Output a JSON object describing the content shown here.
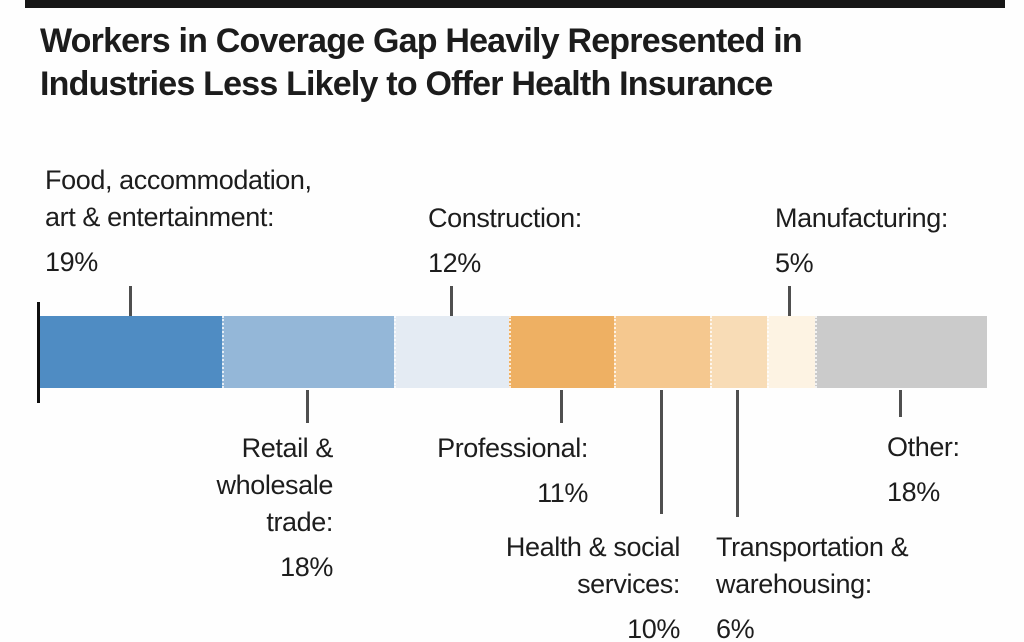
{
  "header": {
    "title_line1": "Workers in Coverage Gap Heavily Represented in",
    "title_line2": "Industries Less Likely to Offer Health Insurance"
  },
  "chart_data": {
    "type": "bar",
    "subtype": "horizontal-stacked-single-bar",
    "title": "Workers in Coverage Gap Heavily Represented in Industries Less Likely to Offer Health Insurance",
    "unit": "%",
    "xlim": [
      0,
      99
    ],
    "grid": false,
    "legend_position": "callouts-above-and-below-bar",
    "categories": [
      "Food, accommodation, art & entertainment",
      "Retail & wholesale trade",
      "Construction",
      "Professional",
      "Health & social services",
      "Transportation & warehousing",
      "Manufacturing",
      "Other"
    ],
    "values": [
      19,
      18,
      12,
      11,
      10,
      6,
      5,
      18
    ],
    "segments": [
      {
        "id": "food",
        "label": "Food, accommodation, art & entertainment",
        "value": 19,
        "color": "#4f8cc3"
      },
      {
        "id": "retail",
        "label": "Retail & wholesale trade",
        "value": 18,
        "color": "#94b7d8"
      },
      {
        "id": "construction",
        "label": "Construction",
        "value": 12,
        "color": "#e4ebf3"
      },
      {
        "id": "professional",
        "label": "Professional",
        "value": 11,
        "color": "#eeb063"
      },
      {
        "id": "health",
        "label": "Health & social services",
        "value": 10,
        "color": "#f5c88f"
      },
      {
        "id": "transportation",
        "label": "Transportation & warehousing",
        "value": 6,
        "color": "#f8dcb6"
      },
      {
        "id": "manufacturing",
        "label": "Manufacturing",
        "value": 5,
        "color": "#fdf3e3"
      },
      {
        "id": "other",
        "label": "Other",
        "value": 18,
        "color": "#cbcbcb"
      }
    ],
    "colors": {
      "leader_line": "#4f4f4f",
      "axis_tick": "#0f0f0f",
      "top_rule": "#171717",
      "text": "#1d1d1d"
    }
  },
  "callouts": {
    "food": {
      "name": "Food, accommodation,\nart & entertainment:",
      "pct": "19%"
    },
    "construction": {
      "name": "Construction:",
      "pct": "12%"
    },
    "manufacturing": {
      "name": "Manufacturing:",
      "pct": "5%"
    },
    "retail": {
      "name": "Retail &\nwholesale\ntrade:",
      "pct": "18%"
    },
    "professional": {
      "name": "Professional:",
      "pct": "11%"
    },
    "health": {
      "name": "Health & social\nservices:",
      "pct": "10%"
    },
    "transportation": {
      "name": "Transportation &\nwarehousing:",
      "pct": "6%"
    },
    "other": {
      "name": "Other:",
      "pct": "18%"
    }
  }
}
